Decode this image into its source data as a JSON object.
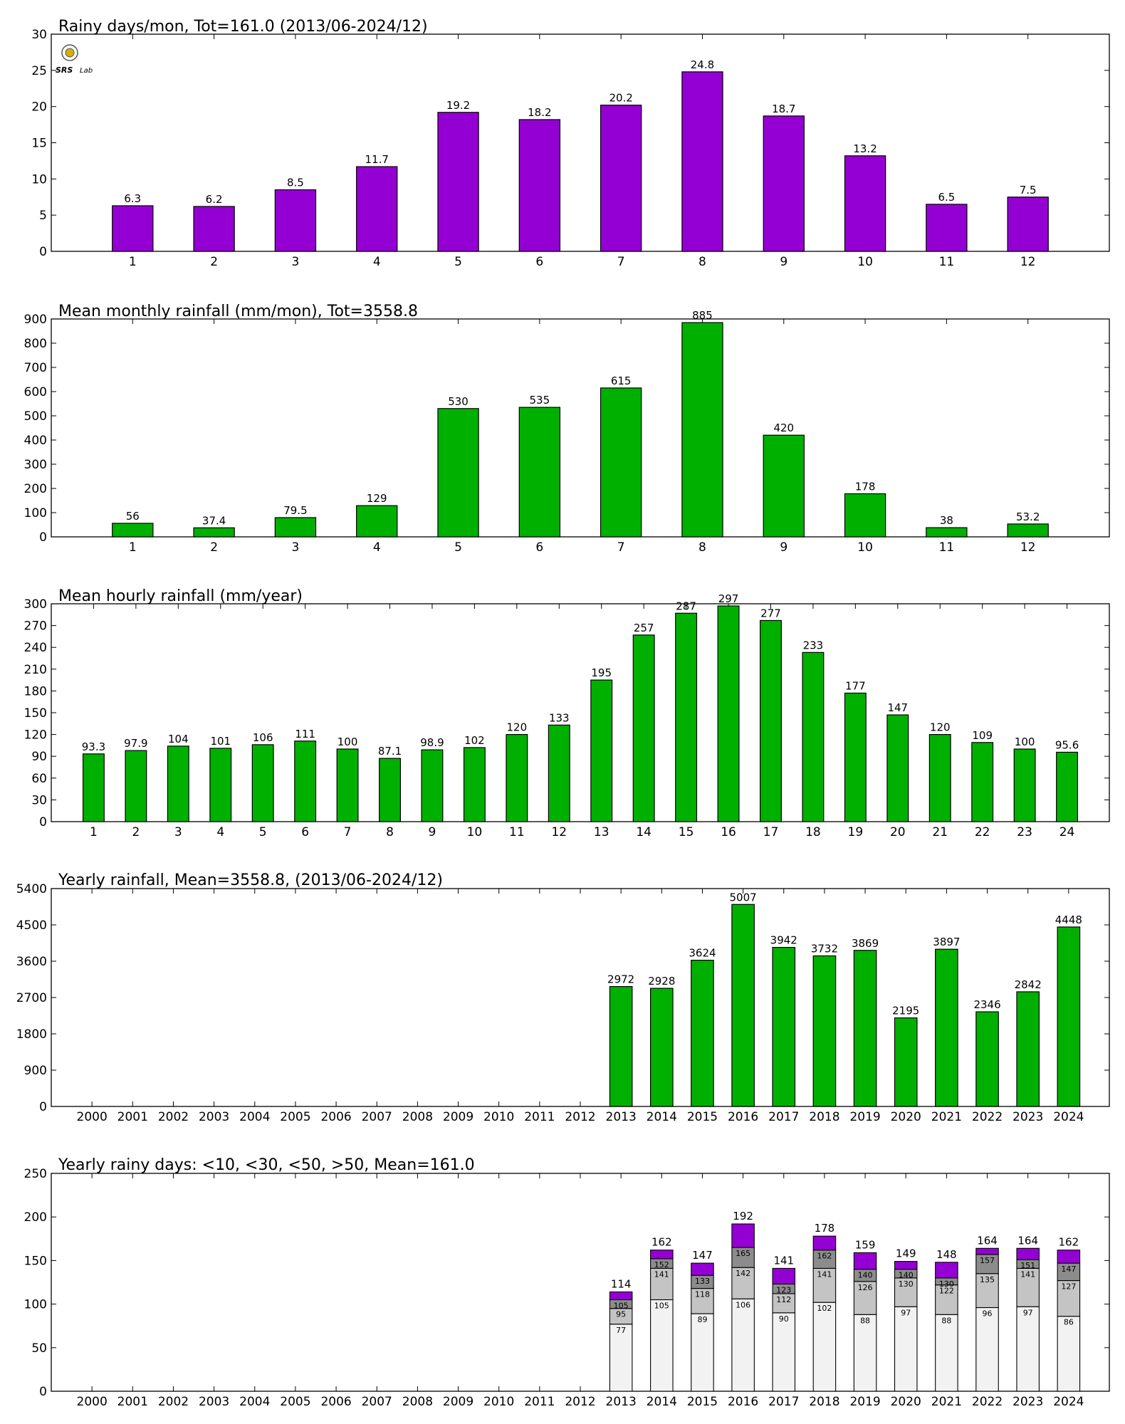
{
  "colors": {
    "purple": "#9400D3",
    "green": "#00B000",
    "dark_gray": "#8C8C8C",
    "light_gray": "#C4C4C4",
    "lightest_gray": "#F2F2F2",
    "axis": "#000000",
    "edge": "#000000"
  },
  "logo": {
    "text_a": "SRS",
    "text_b": "Lab"
  },
  "chart_data": [
    {
      "id": "rainy_days_month",
      "type": "bar",
      "title": "Rainy days/mon, Tot=161.0 (2013/06-2024/12)",
      "categories": [
        "1",
        "2",
        "3",
        "4",
        "5",
        "6",
        "7",
        "8",
        "9",
        "10",
        "11",
        "12"
      ],
      "values": [
        6.3,
        6.2,
        8.5,
        11.7,
        19.2,
        18.2,
        20.2,
        24.8,
        18.7,
        13.2,
        6.5,
        7.5
      ],
      "labels": [
        "6.3",
        "6.2",
        "8.5",
        "11.7",
        "19.2",
        "18.2",
        "20.2",
        "24.8",
        "18.7",
        "13.2",
        "6.5",
        "7.5"
      ],
      "ylim": [
        0,
        30
      ],
      "yticks": [
        0,
        5,
        10,
        15,
        20,
        25,
        30
      ],
      "color": "purple",
      "grid": false
    },
    {
      "id": "mean_monthly_rainfall",
      "type": "bar",
      "title": "Mean monthly rainfall (mm/mon), Tot=3558.8",
      "categories": [
        "1",
        "2",
        "3",
        "4",
        "5",
        "6",
        "7",
        "8",
        "9",
        "10",
        "11",
        "12"
      ],
      "values": [
        56,
        37.4,
        79.5,
        129,
        530,
        535,
        615,
        885,
        420,
        178,
        38,
        53.2
      ],
      "labels": [
        "56",
        "37.4",
        "79.5",
        "129",
        "530",
        "535",
        "615",
        "885",
        "420",
        "178",
        "38",
        "53.2"
      ],
      "ylim": [
        0,
        900
      ],
      "yticks": [
        0,
        100,
        200,
        300,
        400,
        500,
        600,
        700,
        800,
        900
      ],
      "color": "green",
      "grid": false
    },
    {
      "id": "mean_hourly_rainfall",
      "type": "bar",
      "title": "Mean hourly rainfall (mm/year)",
      "categories": [
        "1",
        "2",
        "3",
        "4",
        "5",
        "6",
        "7",
        "8",
        "9",
        "10",
        "11",
        "12",
        "13",
        "14",
        "15",
        "16",
        "17",
        "18",
        "19",
        "20",
        "21",
        "22",
        "23",
        "24"
      ],
      "values": [
        93.3,
        97.9,
        104,
        101,
        106,
        111,
        100,
        87.1,
        98.9,
        102,
        120,
        133,
        195,
        257,
        287,
        297,
        277,
        233,
        177,
        147,
        120,
        109,
        100,
        95.6
      ],
      "labels": [
        "93.3",
        "97.9",
        "104",
        "101",
        "106",
        "111",
        "100",
        "87.1",
        "98.9",
        "102",
        "120",
        "133",
        "195",
        "257",
        "287",
        "297",
        "277",
        "233",
        "177",
        "147",
        "120",
        "109",
        "100",
        "95.6"
      ],
      "ylim": [
        0,
        300
      ],
      "yticks": [
        0,
        30,
        60,
        90,
        120,
        150,
        180,
        210,
        240,
        270,
        300
      ],
      "color": "green",
      "grid": false
    },
    {
      "id": "yearly_rainfall",
      "type": "bar",
      "title": "Yearly rainfall, Mean=3558.8, (2013/06-2024/12)",
      "categories": [
        "2000",
        "2001",
        "2002",
        "2003",
        "2004",
        "2005",
        "2006",
        "2007",
        "2008",
        "2009",
        "2010",
        "2011",
        "2012",
        "2013",
        "2014",
        "2015",
        "2016",
        "2017",
        "2018",
        "2019",
        "2020",
        "2021",
        "2022",
        "2023",
        "2024"
      ],
      "values": [
        null,
        null,
        null,
        null,
        null,
        null,
        null,
        null,
        null,
        null,
        null,
        null,
        null,
        2972,
        2928,
        3624,
        5007,
        3942,
        3732,
        3869,
        2195,
        3897,
        2346,
        2842,
        4448
      ],
      "labels": [
        "",
        "",
        "",
        "",
        "",
        "",
        "",
        "",
        "",
        "",
        "",
        "",
        "",
        "2972",
        "2928",
        "3624",
        "5007",
        "3942",
        "3732",
        "3869",
        "2195",
        "3897",
        "2346",
        "2842",
        "4448"
      ],
      "ylim": [
        0,
        5400
      ],
      "yticks": [
        0,
        900,
        1800,
        2700,
        3600,
        4500,
        5400
      ],
      "color": "green",
      "grid": false
    },
    {
      "id": "yearly_rainy_days",
      "type": "stacked_bar",
      "title": "Yearly rainy days: <10, <30, <50, >50, Mean=161.0",
      "categories": [
        "2000",
        "2001",
        "2002",
        "2003",
        "2004",
        "2005",
        "2006",
        "2007",
        "2008",
        "2009",
        "2010",
        "2011",
        "2012",
        "2013",
        "2014",
        "2015",
        "2016",
        "2017",
        "2018",
        "2019",
        "2020",
        "2021",
        "2022",
        "2023",
        "2024"
      ],
      "series": [
        {
          "name": "<10",
          "color": "lightest_gray",
          "cumulative": [
            null,
            null,
            null,
            null,
            null,
            null,
            null,
            null,
            null,
            null,
            null,
            null,
            null,
            77,
            105,
            89,
            106,
            90,
            102,
            88,
            97,
            88,
            96,
            97,
            86
          ]
        },
        {
          "name": "<30",
          "color": "light_gray",
          "cumulative": [
            null,
            null,
            null,
            null,
            null,
            null,
            null,
            null,
            null,
            null,
            null,
            null,
            null,
            95,
            141,
            118,
            142,
            112,
            141,
            126,
            130,
            122,
            135,
            141,
            127
          ]
        },
        {
          "name": "<50",
          "color": "dark_gray",
          "cumulative": [
            null,
            null,
            null,
            null,
            null,
            null,
            null,
            null,
            null,
            null,
            null,
            null,
            null,
            105,
            152,
            133,
            165,
            123,
            162,
            140,
            140,
            130,
            157,
            151,
            147
          ]
        },
        {
          "name": ">50",
          "color": "purple",
          "cumulative": [
            null,
            null,
            null,
            null,
            null,
            null,
            null,
            null,
            null,
            null,
            null,
            null,
            null,
            114,
            162,
            147,
            192,
            141,
            178,
            159,
            149,
            148,
            164,
            164,
            162
          ]
        }
      ],
      "segment_labels": [
        [
          "",
          "",
          "",
          "",
          "",
          "",
          "",
          "",
          "",
          "",
          "",
          "",
          "",
          "77",
          "105",
          "89",
          "106",
          "90",
          "102",
          "88",
          "97",
          "88",
          "96",
          "97",
          "86"
        ],
        [
          "",
          "",
          "",
          "",
          "",
          "",
          "",
          "",
          "",
          "",
          "",
          "",
          "",
          "95",
          "141",
          "118",
          "142",
          "112",
          "141",
          "126",
          "130",
          "122",
          "135",
          "141",
          "127"
        ],
        [
          "",
          "",
          "",
          "",
          "",
          "",
          "",
          "",
          "",
          "",
          "",
          "",
          "",
          "105",
          "152",
          "133",
          "165",
          "123",
          "162",
          "140",
          "140",
          "130",
          "157",
          "151",
          "147"
        ]
      ],
      "totals": [
        "",
        "",
        "",
        "",
        "",
        "",
        "",
        "",
        "",
        "",
        "",
        "",
        "",
        "114",
        "162",
        "147",
        "192",
        "141",
        "178",
        "159",
        "149",
        "148",
        "164",
        "164",
        "162"
      ],
      "ylim": [
        0,
        250
      ],
      "yticks": [
        0,
        50,
        100,
        150,
        200,
        250
      ],
      "grid": false
    }
  ]
}
